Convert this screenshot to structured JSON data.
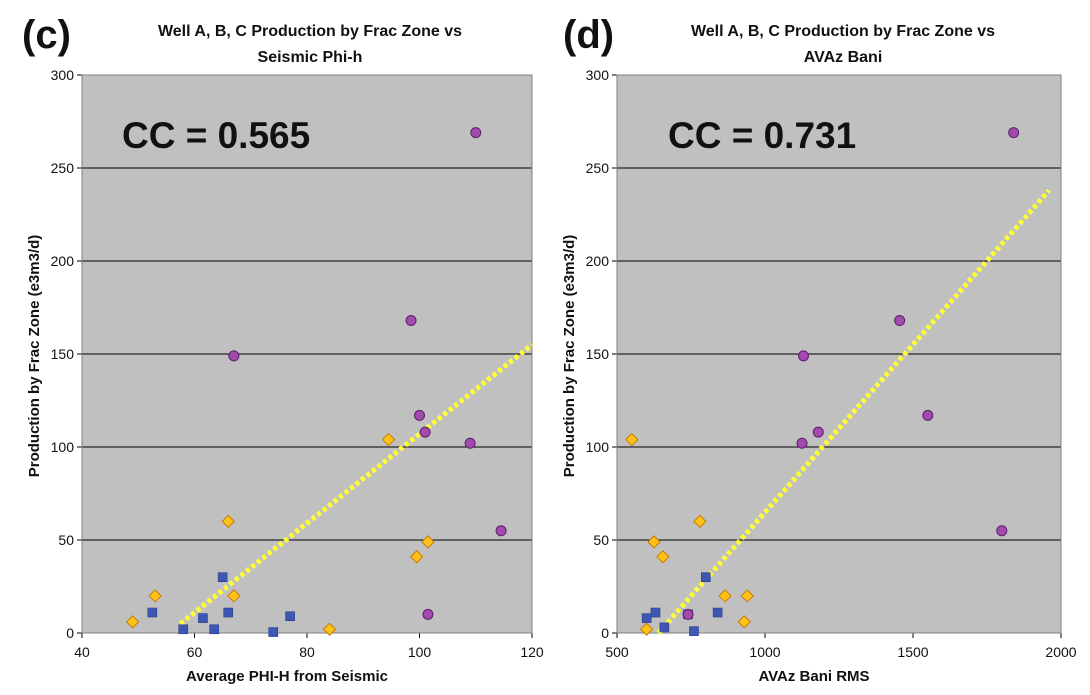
{
  "chart_data": [
    {
      "type": "scatter",
      "panel_label": "(c)",
      "title_line1": "Well A, B, C Production by Frac Zone vs",
      "title_line2": "Seismic Phi-h",
      "annotation": "CC = 0.565",
      "xlabel": "Average PHI-H from Seismic",
      "ylabel": "Production by Frac Zone (e3m3/d)",
      "xlim": [
        40,
        120
      ],
      "ylim": [
        0,
        300
      ],
      "xticks": [
        40,
        60,
        80,
        100,
        120
      ],
      "yticks": [
        0,
        50,
        100,
        150,
        200,
        250,
        300
      ],
      "grid": "horizontal",
      "trendline": {
        "x": [
          57.5,
          120
        ],
        "y": [
          5,
          155
        ]
      },
      "series": [
        {
          "name": "Well A",
          "marker": "square",
          "color": "#3f57b4",
          "x": [
            52.5,
            58,
            61.5,
            63.5,
            65,
            66,
            74,
            77
          ],
          "y": [
            11,
            2,
            8,
            2,
            30,
            11,
            0.5,
            9
          ]
        },
        {
          "name": "Well B",
          "marker": "diamond",
          "color": "#ffc21a",
          "x": [
            49,
            53,
            66,
            67,
            84,
            94.5,
            99.5,
            101.5
          ],
          "y": [
            6,
            20,
            60,
            20,
            2,
            104,
            41,
            49
          ]
        },
        {
          "name": "Well C",
          "marker": "circle",
          "color": "#a24aae",
          "x": [
            67,
            98.5,
            100,
            101,
            101.5,
            109,
            110,
            114.5
          ],
          "y": [
            149,
            168,
            117,
            108,
            10,
            102,
            269,
            55
          ]
        }
      ]
    },
    {
      "type": "scatter",
      "panel_label": "(d)",
      "title_line1": "Well A, B, C Production by Frac Zone vs",
      "title_line2": "AVAz Bani",
      "annotation": "CC = 0.731",
      "xlabel": "AVAz Bani RMS",
      "ylabel": "Production by Frac Zone (e3m3/d)",
      "xlim": [
        500,
        2000
      ],
      "ylim": [
        0,
        300
      ],
      "xticks": [
        500,
        1000,
        1500,
        2000
      ],
      "yticks": [
        0,
        50,
        100,
        150,
        200,
        250,
        300
      ],
      "grid": "horizontal",
      "trendline": {
        "x": [
          640,
          1960
        ],
        "y": [
          0,
          238
        ]
      },
      "series": [
        {
          "name": "Well A",
          "marker": "square",
          "color": "#3f57b4",
          "x": [
            600,
            630,
            660,
            740,
            760,
            800,
            840
          ],
          "y": [
            8,
            11,
            3,
            10,
            1,
            30,
            11
          ]
        },
        {
          "name": "Well B",
          "marker": "diamond",
          "color": "#ffc21a",
          "x": [
            550,
            600,
            625,
            655,
            780,
            865,
            930,
            940
          ],
          "y": [
            104,
            2,
            49,
            41,
            60,
            20,
            6,
            20
          ]
        },
        {
          "name": "Well C",
          "marker": "circle",
          "color": "#a24aae",
          "x": [
            740,
            1125,
            1130,
            1180,
            1455,
            1550,
            1800,
            1840
          ],
          "y": [
            10,
            102,
            149,
            108,
            168,
            117,
            55,
            269
          ]
        }
      ]
    }
  ]
}
